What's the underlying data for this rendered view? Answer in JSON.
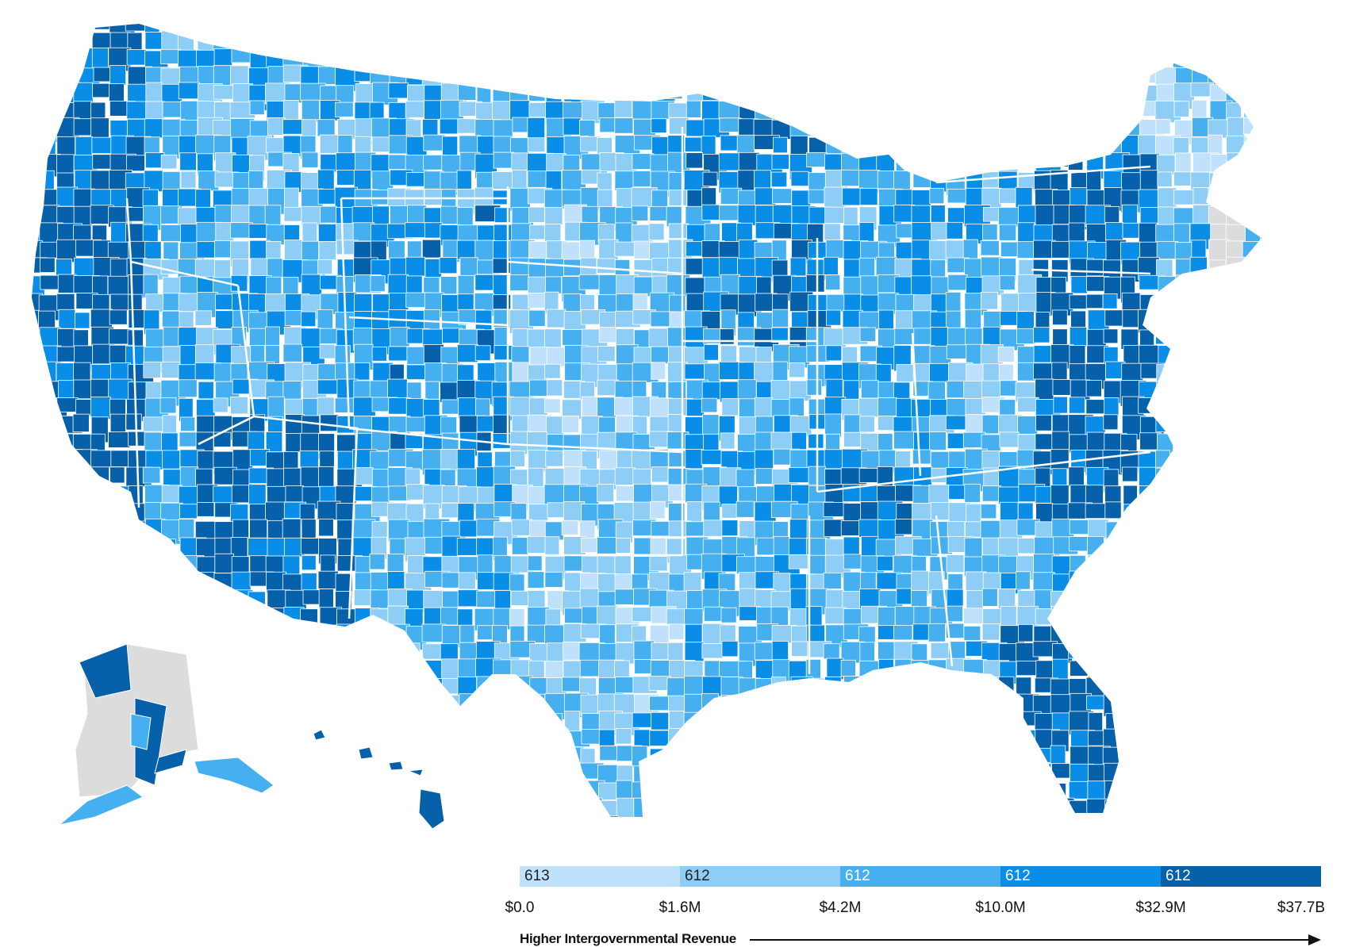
{
  "colors": {
    "bin1": "#bfe1fb",
    "bin2": "#8ecdf6",
    "bin3": "#45aff0",
    "bin4": "#0a8de6",
    "bin5": "#0660aa",
    "nodata": "#dcdcdc",
    "border": "#ffffff"
  },
  "legend": {
    "bins": [
      {
        "count": "613",
        "color": "#bfe1fb",
        "text_color": "#222222"
      },
      {
        "count": "612",
        "color": "#8ecdf6",
        "text_color": "#222222"
      },
      {
        "count": "612",
        "color": "#45aff0",
        "text_color": "#ffffff"
      },
      {
        "count": "612",
        "color": "#0a8de6",
        "text_color": "#ffffff"
      },
      {
        "count": "612",
        "color": "#0660aa",
        "text_color": "#ffffff"
      }
    ],
    "ticks": [
      "$0.0",
      "$1.6M",
      "$4.2M",
      "$10.0M",
      "$32.9M",
      "$37.7B"
    ],
    "axis_title": "Higher Intergovernmental Revenue"
  }
}
